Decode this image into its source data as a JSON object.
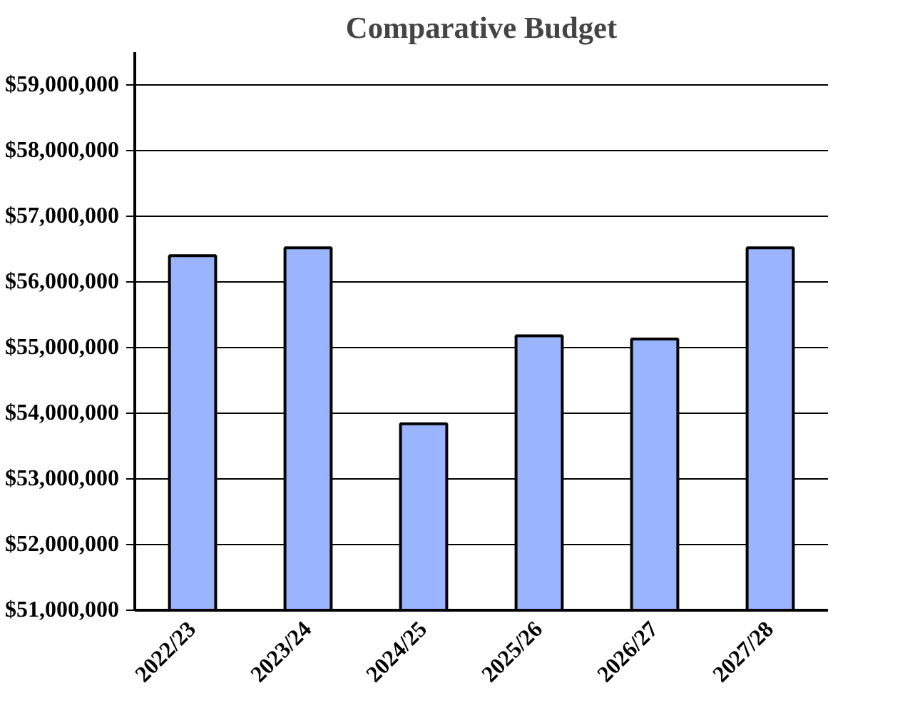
{
  "chart_data": {
    "type": "bar",
    "title": "Comparative Budget",
    "categories": [
      "2022/23",
      "2023/24",
      "2024/25",
      "2025/26",
      "2026/27",
      "2027/28"
    ],
    "values": [
      56400000,
      56520000,
      53840000,
      55180000,
      55130000,
      56520000
    ],
    "color": "#9ab4ff",
    "ylim": [
      51000000,
      59500000
    ],
    "yticks": [
      {
        "value": 51000000,
        "label": "$51,000,000"
      },
      {
        "value": 52000000,
        "label": "$52,000,000"
      },
      {
        "value": 53000000,
        "label": "$53,000,000"
      },
      {
        "value": 54000000,
        "label": "$54,000,000"
      },
      {
        "value": 55000000,
        "label": "$55,000,000"
      },
      {
        "value": 56000000,
        "label": "$56,000,000"
      },
      {
        "value": 57000000,
        "label": "$57,000,000"
      },
      {
        "value": 58000000,
        "label": "$58,000,000"
      },
      {
        "value": 59000000,
        "label": "$59,000,000"
      }
    ],
    "grid": "y"
  }
}
